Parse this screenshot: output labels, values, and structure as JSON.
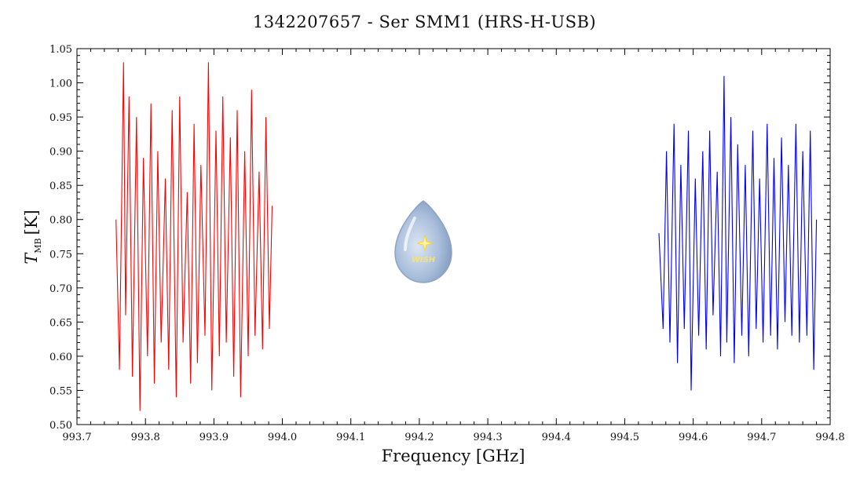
{
  "chart_data": {
    "type": "line",
    "title": "1342207657 - Ser SMM1 (HRS-H-USB)",
    "xlabel": "Frequency [GHz]",
    "ylabel": {
      "main": "T",
      "sub": "MB",
      "unit": "[K]"
    },
    "xlim": [
      993.7,
      994.8
    ],
    "ylim": [
      0.5,
      1.05
    ],
    "x_ticks": [
      "993.7",
      "993.8",
      "993.9",
      "994.0",
      "994.1",
      "994.2",
      "994.3",
      "994.4",
      "994.5",
      "994.6",
      "994.7",
      "994.8"
    ],
    "y_ticks": [
      "0.50",
      "0.55",
      "0.60",
      "0.65",
      "0.70",
      "0.75",
      "0.80",
      "0.85",
      "0.90",
      "0.95",
      "1.00",
      "1.05"
    ],
    "grid": false,
    "series": [
      {
        "color": "#ff0000",
        "x": [
          993.757,
          993.762,
          993.768,
          993.771,
          993.776,
          993.781,
          993.787,
          993.792,
          993.797,
          993.803,
          993.808,
          993.813,
          993.818,
          993.823,
          993.829,
          993.834,
          993.839,
          993.845,
          993.85,
          993.855,
          993.861,
          993.866,
          993.871,
          993.876,
          993.881,
          993.887,
          993.892,
          993.897,
          993.903,
          993.908,
          993.913,
          993.918,
          993.924,
          993.929,
          993.934,
          993.939,
          993.945,
          993.95,
          993.955,
          993.96,
          993.966,
          993.971,
          993.976,
          993.981,
          993.985
        ],
        "y": [
          0.8,
          0.58,
          1.03,
          0.66,
          0.98,
          0.57,
          0.95,
          0.52,
          0.89,
          0.6,
          0.97,
          0.56,
          0.9,
          0.62,
          0.86,
          0.58,
          0.96,
          0.54,
          0.98,
          0.62,
          0.84,
          0.56,
          0.94,
          0.59,
          0.88,
          0.63,
          1.03,
          0.55,
          0.93,
          0.6,
          0.98,
          0.62,
          0.92,
          0.57,
          0.96,
          0.54,
          0.9,
          0.6,
          0.99,
          0.63,
          0.87,
          0.61,
          0.95,
          0.64,
          0.82
        ]
      },
      {
        "color": "#0000ff",
        "x": [
          994.55,
          994.556,
          994.561,
          994.566,
          994.572,
          994.577,
          994.582,
          994.587,
          994.593,
          994.597,
          994.603,
          994.608,
          994.614,
          994.619,
          994.624,
          994.629,
          994.635,
          994.64,
          994.645,
          994.649,
          994.655,
          994.66,
          994.665,
          994.671,
          994.676,
          994.681,
          994.687,
          994.692,
          994.697,
          994.702,
          994.708,
          994.713,
          994.718,
          994.723,
          994.729,
          994.734,
          994.739,
          994.744,
          994.75,
          994.755,
          994.76,
          994.766,
          994.771,
          994.776,
          994.78
        ],
        "y": [
          0.78,
          0.64,
          0.9,
          0.62,
          0.94,
          0.59,
          0.88,
          0.64,
          0.93,
          0.55,
          0.86,
          0.63,
          0.9,
          0.61,
          0.93,
          0.66,
          0.87,
          0.6,
          1.01,
          0.62,
          0.95,
          0.59,
          0.91,
          0.63,
          0.88,
          0.6,
          0.93,
          0.64,
          0.86,
          0.62,
          0.94,
          0.63,
          0.89,
          0.61,
          0.92,
          0.65,
          0.88,
          0.63,
          0.94,
          0.62,
          0.9,
          0.63,
          0.93,
          0.58,
          0.8
        ]
      }
    ],
    "logo_text": "WISH"
  }
}
